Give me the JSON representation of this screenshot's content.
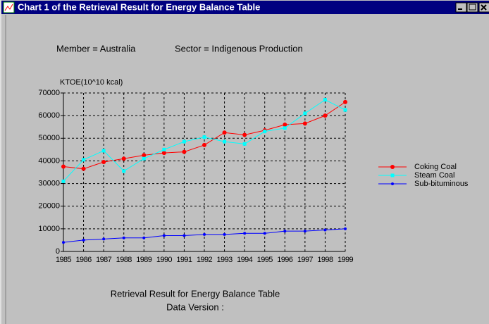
{
  "window": {
    "title": "Chart 1 of the Retrieval Result for Energy Balance Table"
  },
  "chart_data": {
    "type": "line",
    "subtitles": [
      "Member = Australia",
      "Sector = Indigenous Production"
    ],
    "ylabel": "KTOE(10^10 kcal)",
    "footer": [
      "Retrieval Result for Energy Balance Table",
      "Data Version :"
    ],
    "categories": [
      "1985",
      "1986",
      "1987",
      "1988",
      "1989",
      "1990",
      "1991",
      "1992",
      "1993",
      "1994",
      "1995",
      "1996",
      "1997",
      "1998",
      "1999"
    ],
    "series": [
      {
        "name": "Coking Coal",
        "color": "#ff0000",
        "marker": "circle",
        "values": [
          37500,
          36500,
          39500,
          41000,
          42500,
          43500,
          44000,
          47000,
          52500,
          51500,
          53500,
          56000,
          56500,
          60000,
          66000
        ]
      },
      {
        "name": "Steam Coal",
        "color": "#00ffff",
        "marker": "square",
        "values": [
          31000,
          40500,
          44500,
          35500,
          41000,
          45000,
          48500,
          50500,
          48500,
          47500,
          53000,
          54500,
          61000,
          67000,
          62500
        ]
      },
      {
        "name": "Sub-bituminous",
        "color": "#0000ff",
        "marker": "dot",
        "values": [
          4000,
          5000,
          5500,
          6000,
          6000,
          7000,
          7000,
          7500,
          7500,
          8000,
          8000,
          9000,
          9000,
          9500,
          10000
        ]
      }
    ],
    "ylim": [
      0,
      70000
    ],
    "yticks": [
      0,
      10000,
      20000,
      30000,
      40000,
      50000,
      60000,
      70000
    ],
    "grid": true,
    "legend": "right"
  }
}
